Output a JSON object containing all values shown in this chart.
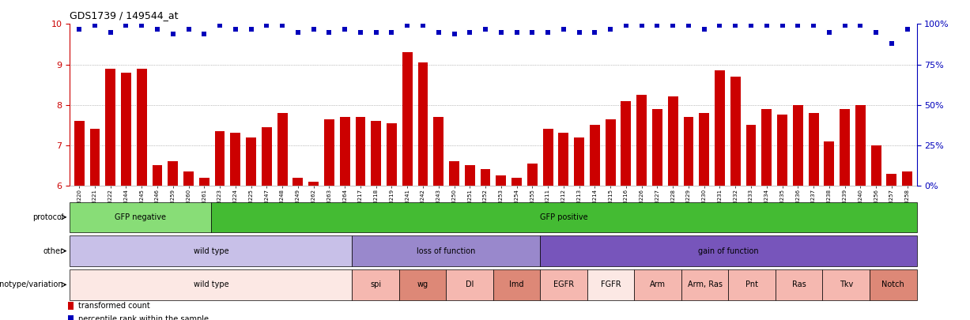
{
  "title": "GDS1739 / 149544_at",
  "sample_labels": [
    "GSM88220",
    "GSM88221",
    "GSM88222",
    "GSM88244",
    "GSM88245",
    "GSM88246",
    "GSM88259",
    "GSM88260",
    "GSM88261",
    "GSM88223",
    "GSM88224",
    "GSM88225",
    "GSM88247",
    "GSM88248",
    "GSM88249",
    "GSM88262",
    "GSM88263",
    "GSM88264",
    "GSM88217",
    "GSM88218",
    "GSM88219",
    "GSM88241",
    "GSM88242",
    "GSM88243",
    "GSM88250",
    "GSM88251",
    "GSM88252",
    "GSM88253",
    "GSM88254",
    "GSM88255",
    "GSM88211",
    "GSM88212",
    "GSM88213",
    "GSM88214",
    "GSM88215",
    "GSM88216",
    "GSM88226",
    "GSM88227",
    "GSM88228",
    "GSM88229",
    "GSM88230",
    "GSM88231",
    "GSM88232",
    "GSM88233",
    "GSM88234",
    "GSM88235",
    "GSM88236",
    "GSM88237",
    "GSM88238",
    "GSM88239",
    "GSM88240",
    "GSM88256",
    "GSM88257",
    "GSM88258"
  ],
  "bar_values": [
    7.6,
    7.4,
    8.9,
    8.8,
    8.9,
    6.5,
    6.6,
    6.35,
    6.2,
    7.35,
    7.3,
    7.2,
    7.45,
    7.8,
    6.2,
    6.1,
    7.65,
    7.7,
    7.7,
    7.6,
    7.55,
    9.3,
    9.05,
    7.7,
    6.6,
    6.5,
    6.4,
    6.25,
    6.2,
    6.55,
    7.4,
    7.3,
    7.2,
    7.5,
    7.65,
    8.1,
    8.25,
    7.9,
    8.2,
    7.7,
    7.8,
    8.85,
    8.7,
    7.5,
    7.9,
    7.75,
    8.0,
    7.8,
    7.1,
    7.9,
    8.0,
    7.0,
    6.3,
    6.35
  ],
  "percentile_pct": [
    97,
    99,
    95,
    99,
    99,
    97,
    94,
    97,
    94,
    99,
    97,
    97,
    99,
    99,
    95,
    97,
    95,
    97,
    95,
    95,
    95,
    99,
    99,
    95,
    94,
    95,
    97,
    95,
    95,
    95,
    95,
    97,
    95,
    95,
    97,
    99,
    99,
    99,
    99,
    99,
    97,
    99,
    99,
    99,
    99,
    99,
    99,
    99,
    95,
    99,
    99,
    95,
    88,
    97
  ],
  "ymin": 6,
  "ymax": 10,
  "yticks_left": [
    6,
    7,
    8,
    9,
    10
  ],
  "yticks_right": [
    0,
    25,
    50,
    75,
    100
  ],
  "ytick_labels_right": [
    "0%",
    "25%",
    "50%",
    "75%",
    "100%"
  ],
  "bar_color": "#cc0000",
  "percentile_color": "#0000bb",
  "grid_color": "#888888",
  "plot_bg": "#ffffff",
  "protocol_row": {
    "label": "protocol",
    "segments": [
      {
        "text": "GFP negative",
        "color": "#88dd77",
        "start": 0,
        "end": 9
      },
      {
        "text": "GFP positive",
        "color": "#44bb33",
        "start": 9,
        "end": 54
      }
    ]
  },
  "other_row": {
    "label": "other",
    "segments": [
      {
        "text": "wild type",
        "color": "#c8c0e8",
        "start": 0,
        "end": 18
      },
      {
        "text": "loss of function",
        "color": "#9988cc",
        "start": 18,
        "end": 30
      },
      {
        "text": "gain of function",
        "color": "#7755bb",
        "start": 30,
        "end": 54
      }
    ]
  },
  "genotype_row": {
    "label": "genotype/variation",
    "segments": [
      {
        "text": "wild type",
        "color": "#fce8e4",
        "start": 0,
        "end": 18
      },
      {
        "text": "spi",
        "color": "#f5b8b0",
        "start": 18,
        "end": 21
      },
      {
        "text": "wg",
        "color": "#dd8877",
        "start": 21,
        "end": 24
      },
      {
        "text": "Dl",
        "color": "#f5b8b0",
        "start": 24,
        "end": 27
      },
      {
        "text": "Imd",
        "color": "#dd8877",
        "start": 27,
        "end": 30
      },
      {
        "text": "EGFR",
        "color": "#f5b8b0",
        "start": 30,
        "end": 33
      },
      {
        "text": "FGFR",
        "color": "#fce8e4",
        "start": 33,
        "end": 36
      },
      {
        "text": "Arm",
        "color": "#f5b8b0",
        "start": 36,
        "end": 39
      },
      {
        "text": "Arm, Ras",
        "color": "#f5b8b0",
        "start": 39,
        "end": 42
      },
      {
        "text": "Pnt",
        "color": "#f5b8b0",
        "start": 42,
        "end": 45
      },
      {
        "text": "Ras",
        "color": "#f5b8b0",
        "start": 45,
        "end": 48
      },
      {
        "text": "Tkv",
        "color": "#f5b8b0",
        "start": 48,
        "end": 51
      },
      {
        "text": "Notch",
        "color": "#dd8877",
        "start": 51,
        "end": 54
      }
    ]
  },
  "legend_items": [
    {
      "color": "#cc0000",
      "label": "transformed count"
    },
    {
      "color": "#0000bb",
      "label": "percentile rank within the sample"
    }
  ]
}
